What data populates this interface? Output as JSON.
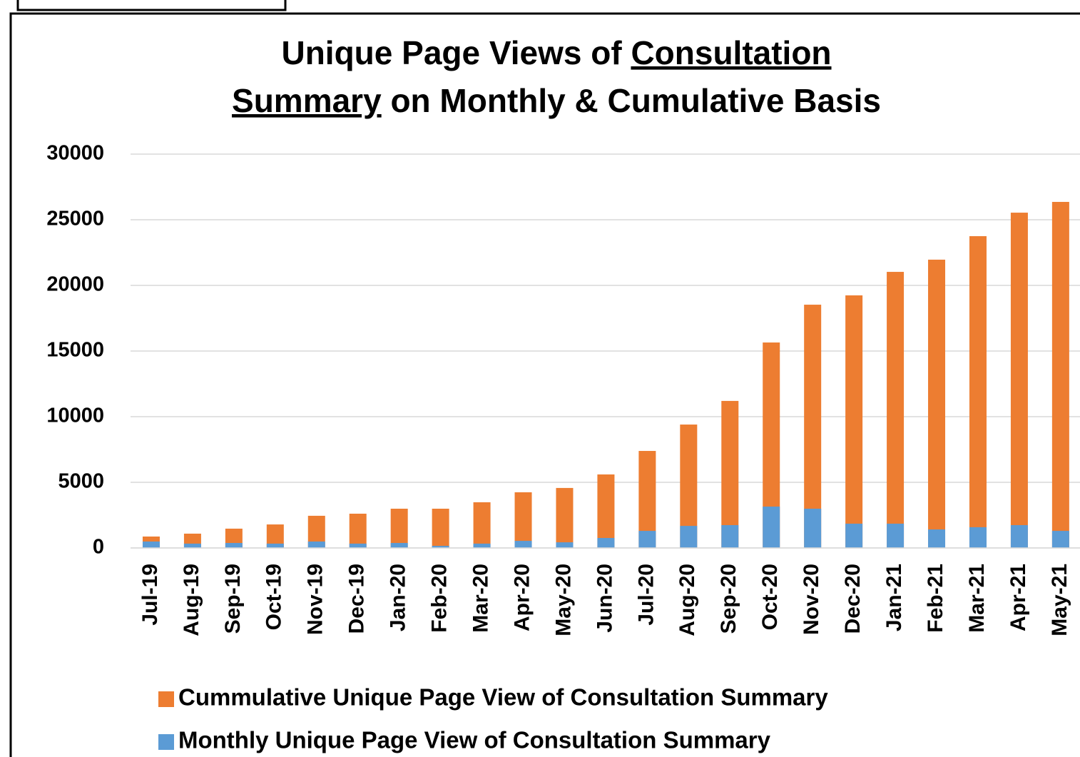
{
  "chart_data": {
    "type": "bar",
    "overlap": true,
    "title": [
      [
        {
          "text": "Unique Page Views of ",
          "underline": false
        },
        {
          "text": "Consultation",
          "underline": true
        }
      ],
      [
        {
          "text": "Summary",
          "underline": true
        },
        {
          "text": " on Monthly & Cumulative Basis",
          "underline": false
        }
      ]
    ],
    "categories": [
      "Jul-19",
      "Aug-19",
      "Sep-19",
      "Oct-19",
      "Nov-19",
      "Dec-19",
      "Jan-20",
      "Feb-20",
      "Mar-20",
      "Apr-20",
      "May-20",
      "Jun-20",
      "Jul-20",
      "Aug-20",
      "Sep-20",
      "Oct-20",
      "Nov-20",
      "Dec-20",
      "Jan-21",
      "Feb-21",
      "Mar-21",
      "Apr-21",
      "May-21"
    ],
    "series": [
      {
        "name": "Cummulative Unique Page View of Consultation Summary",
        "color": "#ed7d31",
        "values": [
          870,
          1090,
          1470,
          1790,
          2450,
          2610,
          2990,
          2990,
          3480,
          4240,
          4570,
          5600,
          7390,
          9400,
          11200,
          15650,
          18530,
          19240,
          21030,
          21960,
          23750,
          25540,
          26360
        ]
      },
      {
        "name": "Monthly Unique Page View of Consultation Summary",
        "color": "#5b9bd5",
        "values": [
          490,
          330,
          380,
          330,
          490,
          330,
          380,
          160,
          330,
          540,
          430,
          760,
          1300,
          1680,
          1740,
          3150,
          2990,
          1850,
          1850,
          1410,
          1580,
          1740,
          1300
        ]
      }
    ],
    "ylim": [
      0,
      30000
    ],
    "yticks": [
      0,
      5000,
      10000,
      15000,
      20000,
      25000,
      30000
    ],
    "grid": true,
    "legend": "bottom"
  }
}
